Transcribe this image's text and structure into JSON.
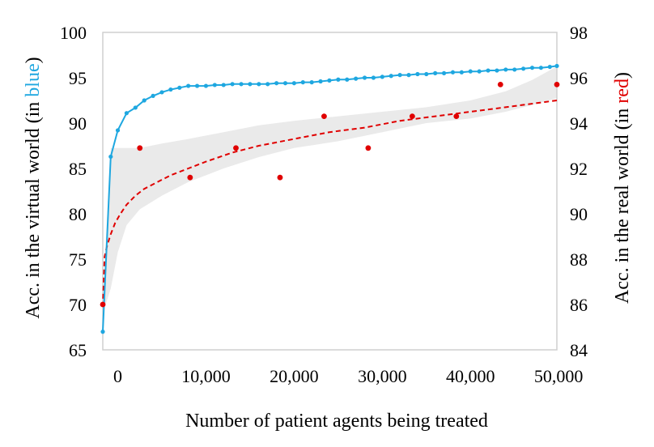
{
  "chart_data": {
    "type": "line",
    "xlabel": "Number of patient agents being treated",
    "x_ticks": [
      0,
      10000,
      20000,
      30000,
      40000,
      50000
    ],
    "x_tick_labels": [
      "0",
      "10,000",
      "20,000",
      "30,000",
      "40,000",
      "50,000"
    ],
    "xlim": [
      -1700,
      49800
    ],
    "y_left": {
      "label_prefix": "Acc. in the virtual world (in ",
      "label_colored": "blue",
      "label_suffix": ")",
      "label_color": "#1ea7e0",
      "lim": [
        65,
        100
      ],
      "ticks": [
        65,
        70,
        75,
        80,
        85,
        90,
        95,
        100
      ]
    },
    "y_right": {
      "label_prefix": "Acc. in the real world (in ",
      "label_colored": "red",
      "label_suffix": ")",
      "label_color": "#e00000",
      "lim": [
        84,
        98
      ],
      "ticks": [
        84,
        86,
        88,
        90,
        92,
        94,
        96,
        98
      ]
    },
    "series": [
      {
        "axis": "left",
        "color": "#1ea7e0",
        "style": "line-markers",
        "x": [
          -1700,
          -800,
          0,
          1000,
          2000,
          3000,
          4000,
          5000,
          6000,
          7000,
          8000,
          9000,
          10000,
          11000,
          12000,
          13000,
          14000,
          15000,
          16000,
          17000,
          18000,
          19000,
          20000,
          21000,
          22000,
          23000,
          24000,
          25000,
          26000,
          27000,
          28000,
          29000,
          30000,
          31000,
          32000,
          33000,
          34000,
          35000,
          36000,
          37000,
          38000,
          39000,
          40000,
          41000,
          42000,
          43000,
          44000,
          45000,
          46000,
          47000,
          48000,
          49000,
          49800
        ],
        "y": [
          67.0,
          86.3,
          89.2,
          91.1,
          91.7,
          92.5,
          93.0,
          93.4,
          93.7,
          93.9,
          94.1,
          94.1,
          94.1,
          94.2,
          94.2,
          94.3,
          94.3,
          94.3,
          94.3,
          94.3,
          94.4,
          94.4,
          94.4,
          94.5,
          94.5,
          94.6,
          94.7,
          94.8,
          94.8,
          94.9,
          95.0,
          95.0,
          95.1,
          95.2,
          95.3,
          95.3,
          95.4,
          95.4,
          95.5,
          95.5,
          95.6,
          95.6,
          95.7,
          95.7,
          95.8,
          95.8,
          95.9,
          95.9,
          96.0,
          96.1,
          96.1,
          96.2,
          96.3
        ]
      },
      {
        "axis": "right",
        "color": "#e00000",
        "style": "scatter",
        "x": [
          -1700,
          2500,
          8200,
          13400,
          18400,
          23400,
          28400,
          33400,
          38400,
          43400,
          49800
        ],
        "y": [
          86.0,
          92.9,
          91.6,
          92.9,
          91.6,
          94.3,
          92.9,
          94.3,
          94.3,
          95.7,
          95.7
        ]
      },
      {
        "axis": "right",
        "color": "#e00000",
        "style": "dashed-fit",
        "x": [
          -1700,
          -1500,
          -1200,
          -800,
          -300,
          300,
          1000,
          2000,
          3000,
          4500,
          6000,
          8000,
          10000,
          13000,
          16000,
          20000,
          24000,
          28000,
          32000,
          36000,
          40000,
          44000,
          49800
        ],
        "y": [
          85.9,
          88.1,
          88.6,
          89.1,
          89.6,
          90.0,
          90.4,
          90.8,
          91.1,
          91.4,
          91.7,
          92.0,
          92.3,
          92.7,
          93.0,
          93.3,
          93.6,
          93.8,
          94.1,
          94.3,
          94.5,
          94.7,
          95.0
        ]
      },
      {
        "axis": "right",
        "color": "#d9d9d9",
        "style": "confidence-band",
        "x": [
          -1700,
          -800,
          0,
          1000,
          2500,
          5000,
          8000,
          12000,
          16000,
          20000,
          25000,
          30000,
          35000,
          40000,
          44000,
          47000,
          49800
        ],
        "upper": [
          86.3,
          92.9,
          92.9,
          92.9,
          92.9,
          93.1,
          93.3,
          93.6,
          93.9,
          94.1,
          94.3,
          94.5,
          94.7,
          95.0,
          95.4,
          95.9,
          96.5
        ],
        "lower": [
          85.6,
          86.7,
          88.3,
          89.5,
          90.2,
          90.8,
          91.4,
          92.0,
          92.5,
          92.9,
          93.2,
          93.6,
          94.0,
          94.2,
          94.5,
          94.8,
          95.1
        ]
      }
    ]
  }
}
